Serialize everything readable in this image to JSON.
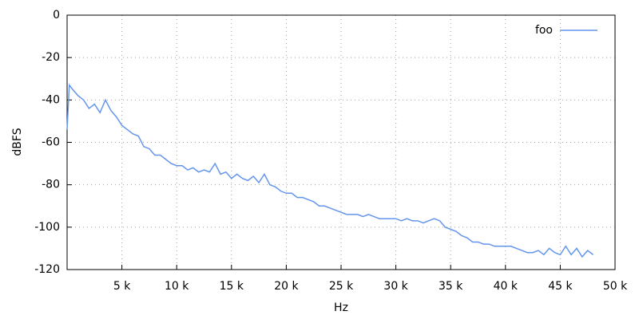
{
  "chart_data": {
    "type": "line",
    "xlabel": "Hz",
    "ylabel": "dBFS",
    "x": [
      0,
      200,
      500,
      1000,
      1500,
      2000,
      2500,
      3000,
      3500,
      4000,
      4500,
      5000,
      5500,
      6000,
      6500,
      7000,
      7500,
      8000,
      8500,
      9000,
      9500,
      10000,
      10500,
      11000,
      11500,
      12000,
      12500,
      13000,
      13500,
      14000,
      14500,
      15000,
      15500,
      16000,
      16500,
      17000,
      17500,
      18000,
      18500,
      19000,
      19500,
      20000,
      20500,
      21000,
      21500,
      22000,
      22500,
      23000,
      23500,
      24000,
      24500,
      25000,
      25500,
      26000,
      26500,
      27000,
      27500,
      28000,
      28500,
      29000,
      29500,
      30000,
      30500,
      31000,
      31500,
      32000,
      32500,
      33000,
      33500,
      34000,
      34500,
      35000,
      35500,
      36000,
      36500,
      37000,
      37500,
      38000,
      38500,
      39000,
      39500,
      40000,
      40500,
      41000,
      41500,
      42000,
      42500,
      43000,
      43500,
      44000,
      44500,
      45000,
      45500,
      46000,
      46500,
      47000,
      47500,
      48000
    ],
    "series": [
      {
        "name": "foo",
        "color": "#6495ed",
        "values": [
          -54,
          -33,
          -35,
          -38,
          -40,
          -44,
          -42,
          -46,
          -40,
          -45,
          -48,
          -52,
          -54,
          -56,
          -57,
          -62,
          -63,
          -66,
          -66,
          -68,
          -70,
          -71,
          -71,
          -73,
          -72,
          -74,
          -73,
          -74,
          -70,
          -75,
          -74,
          -77,
          -75,
          -77,
          -78,
          -76,
          -79,
          -75,
          -80,
          -81,
          -83,
          -84,
          -84,
          -86,
          -86,
          -87,
          -88,
          -90,
          -90,
          -91,
          -92,
          -93,
          -94,
          -94,
          -94,
          -95,
          -94,
          -95,
          -96,
          -96,
          -96,
          -96,
          -97,
          -96,
          -97,
          -97,
          -98,
          -97,
          -96,
          -97,
          -100,
          -101,
          -102,
          -104,
          -105,
          -107,
          -107,
          -108,
          -108,
          -109,
          -109,
          -109,
          -109,
          -110,
          -111,
          -112,
          -112,
          -111,
          -113,
          -110,
          -112,
          -113,
          -109,
          -113,
          -110,
          -114,
          -111,
          -113
        ]
      }
    ],
    "xlim": [
      0,
      50000
    ],
    "xticks": [
      {
        "value": 5000,
        "label": "5 k"
      },
      {
        "value": 10000,
        "label": "10 k"
      },
      {
        "value": 15000,
        "label": "15 k"
      },
      {
        "value": 20000,
        "label": "20 k"
      },
      {
        "value": 25000,
        "label": "25 k"
      },
      {
        "value": 30000,
        "label": "30 k"
      },
      {
        "value": 35000,
        "label": "35 k"
      },
      {
        "value": 40000,
        "label": "40 k"
      },
      {
        "value": 45000,
        "label": "45 k"
      },
      {
        "value": 50000,
        "label": "50 k"
      }
    ],
    "ylim": [
      -120,
      0
    ],
    "yticks": [
      0,
      -20,
      -40,
      -60,
      -80,
      -100,
      -120
    ],
    "grid": true,
    "legend": "top-right"
  }
}
